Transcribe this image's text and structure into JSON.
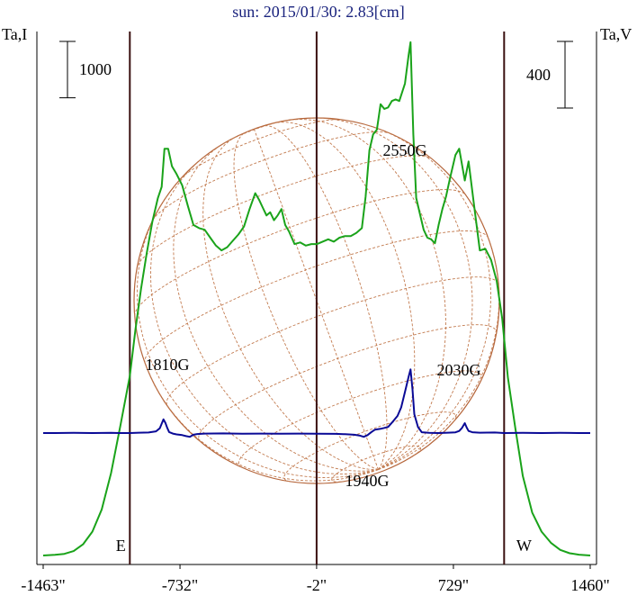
{
  "chart_data": {
    "type": "line",
    "title": "sun: 2015/01/30: 2.83[cm]",
    "left_axis_label": "Ta,I",
    "right_axis_label": "Ta,V",
    "left_scale_bar": "1000",
    "right_scale_bar": "400",
    "xlim": [
      -1463,
      1460
    ],
    "x_ticks": [
      {
        "value": -1463,
        "label": "-1463\""
      },
      {
        "value": -732,
        "label": "-732\""
      },
      {
        "value": -2,
        "label": "-2\""
      },
      {
        "value": 729,
        "label": "729\""
      },
      {
        "value": 1460,
        "label": "1460\""
      }
    ],
    "limb_markers": {
      "E": -1000,
      "W": 1000
    },
    "vertical_lines": [
      -1000,
      -2,
      1000
    ],
    "annotations": [
      {
        "text": "2550G",
        "x": 500
      },
      {
        "text": "1810G",
        "x": -820
      },
      {
        "text": "2030G",
        "x": 790
      },
      {
        "text": "1940G",
        "x": 250
      }
    ],
    "series": [
      {
        "color": "#1aa31a",
        "axis": "left",
        "points": [
          [
            -1463,
            0
          ],
          [
            -1400,
            4
          ],
          [
            -1350,
            10
          ],
          [
            -1300,
            28
          ],
          [
            -1250,
            70
          ],
          [
            -1200,
            150
          ],
          [
            -1150,
            290
          ],
          [
            -1100,
            520
          ],
          [
            -1050,
            820
          ],
          [
            -1000,
            1130
          ],
          [
            -970,
            1420
          ],
          [
            -940,
            1680
          ],
          [
            -910,
            1900
          ],
          [
            -880,
            2100
          ],
          [
            -850,
            2250
          ],
          [
            -830,
            2320
          ],
          [
            -815,
            2560
          ],
          [
            -795,
            2560
          ],
          [
            -775,
            2450
          ],
          [
            -750,
            2400
          ],
          [
            -720,
            2330
          ],
          [
            -690,
            2200
          ],
          [
            -660,
            2080
          ],
          [
            -630,
            2060
          ],
          [
            -600,
            2050
          ],
          [
            -570,
            2000
          ],
          [
            -540,
            1950
          ],
          [
            -510,
            1920
          ],
          [
            -480,
            1940
          ],
          [
            -450,
            1980
          ],
          [
            -420,
            2020
          ],
          [
            -390,
            2070
          ],
          [
            -360,
            2180
          ],
          [
            -330,
            2280
          ],
          [
            -310,
            2240
          ],
          [
            -290,
            2190
          ],
          [
            -270,
            2140
          ],
          [
            -250,
            2160
          ],
          [
            -230,
            2110
          ],
          [
            -210,
            2140
          ],
          [
            -190,
            2180
          ],
          [
            -170,
            2080
          ],
          [
            -150,
            2040
          ],
          [
            -120,
            1960
          ],
          [
            -90,
            1970
          ],
          [
            -60,
            1950
          ],
          [
            -30,
            1960
          ],
          [
            0,
            1960
          ],
          [
            30,
            1975
          ],
          [
            60,
            1990
          ],
          [
            90,
            1975
          ],
          [
            120,
            2000
          ],
          [
            150,
            2010
          ],
          [
            180,
            2010
          ],
          [
            210,
            2030
          ],
          [
            240,
            2060
          ],
          [
            260,
            2260
          ],
          [
            280,
            2550
          ],
          [
            300,
            2650
          ],
          [
            320,
            2680
          ],
          [
            340,
            2840
          ],
          [
            360,
            2810
          ],
          [
            380,
            2820
          ],
          [
            400,
            2860
          ],
          [
            420,
            2870
          ],
          [
            440,
            2860
          ],
          [
            470,
            2970
          ],
          [
            490,
            3150
          ],
          [
            500,
            3230
          ],
          [
            515,
            2650
          ],
          [
            530,
            2250
          ],
          [
            550,
            2150
          ],
          [
            570,
            2050
          ],
          [
            590,
            2000
          ],
          [
            610,
            1990
          ],
          [
            630,
            1965
          ],
          [
            650,
            2080
          ],
          [
            670,
            2180
          ],
          [
            690,
            2260
          ],
          [
            710,
            2370
          ],
          [
            740,
            2520
          ],
          [
            760,
            2560
          ],
          [
            790,
            2360
          ],
          [
            810,
            2480
          ],
          [
            840,
            2200
          ],
          [
            870,
            1920
          ],
          [
            900,
            1930
          ],
          [
            930,
            1860
          ],
          [
            960,
            1730
          ],
          [
            990,
            1490
          ],
          [
            1020,
            1120
          ],
          [
            1060,
            800
          ],
          [
            1100,
            500
          ],
          [
            1150,
            270
          ],
          [
            1200,
            150
          ],
          [
            1250,
            80
          ],
          [
            1300,
            35
          ],
          [
            1350,
            14
          ],
          [
            1400,
            5
          ],
          [
            1460,
            0
          ]
        ]
      },
      {
        "color": "#0a0a96",
        "axis": "right",
        "points": [
          [
            -1463,
            0
          ],
          [
            -1400,
            0
          ],
          [
            -1300,
            1
          ],
          [
            -1200,
            0
          ],
          [
            -1100,
            1
          ],
          [
            -1050,
            0
          ],
          [
            -1000,
            0
          ],
          [
            -950,
            2
          ],
          [
            -900,
            3
          ],
          [
            -860,
            10
          ],
          [
            -840,
            28
          ],
          [
            -820,
            80
          ],
          [
            -810,
            60
          ],
          [
            -800,
            30
          ],
          [
            -790,
            6
          ],
          [
            -770,
            -3
          ],
          [
            -750,
            -8
          ],
          [
            -720,
            -12
          ],
          [
            -700,
            -18
          ],
          [
            -680,
            -22
          ],
          [
            -660,
            -10
          ],
          [
            -640,
            -6
          ],
          [
            -600,
            -3
          ],
          [
            -500,
            -2
          ],
          [
            -400,
            -4
          ],
          [
            -300,
            -3
          ],
          [
            -200,
            -4
          ],
          [
            -100,
            -3
          ],
          [
            0,
            -4
          ],
          [
            100,
            -5
          ],
          [
            150,
            -7
          ],
          [
            200,
            -10
          ],
          [
            230,
            -15
          ],
          [
            250,
            -22
          ],
          [
            270,
            -12
          ],
          [
            290,
            5
          ],
          [
            310,
            20
          ],
          [
            340,
            25
          ],
          [
            360,
            30
          ],
          [
            380,
            36
          ],
          [
            400,
            60
          ],
          [
            430,
            100
          ],
          [
            450,
            150
          ],
          [
            470,
            240
          ],
          [
            490,
            330
          ],
          [
            500,
            372
          ],
          [
            510,
            260
          ],
          [
            520,
            110
          ],
          [
            540,
            35
          ],
          [
            560,
            5
          ],
          [
            600,
            1
          ],
          [
            650,
            0
          ],
          [
            700,
            2
          ],
          [
            740,
            4
          ],
          [
            760,
            12
          ],
          [
            775,
            30
          ],
          [
            790,
            58
          ],
          [
            800,
            32
          ],
          [
            810,
            12
          ],
          [
            830,
            5
          ],
          [
            870,
            2
          ],
          [
            950,
            3
          ],
          [
            1000,
            0
          ],
          [
            1100,
            1
          ],
          [
            1200,
            0
          ],
          [
            1300,
            1
          ],
          [
            1400,
            0
          ],
          [
            1460,
            0
          ]
        ]
      }
    ],
    "solar_disk_grid": true
  }
}
